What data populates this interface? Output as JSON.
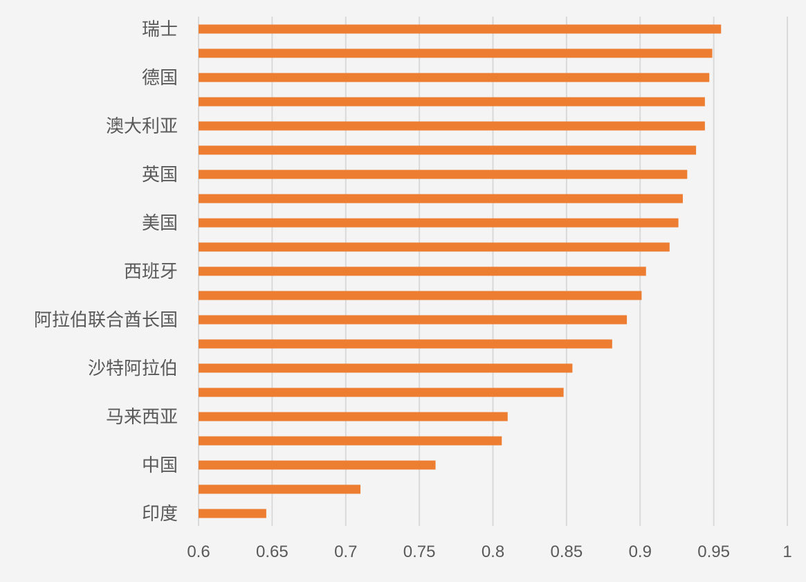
{
  "chart_data": {
    "type": "bar",
    "orientation": "horizontal",
    "categories": [
      "瑞士",
      "",
      "德国",
      "",
      "澳大利亚",
      "",
      "英国",
      "",
      "美国",
      "",
      "西班牙",
      "",
      "阿拉伯联合酋长国",
      "",
      "沙特阿拉伯",
      "",
      "马来西亚",
      "",
      "中国",
      "",
      "印度"
    ],
    "values": [
      0.955,
      0.949,
      0.947,
      0.944,
      0.944,
      0.938,
      0.932,
      0.929,
      0.926,
      0.92,
      0.904,
      0.901,
      0.891,
      0.881,
      0.854,
      0.848,
      0.81,
      0.806,
      0.761,
      0.71,
      0.646
    ],
    "xlim": [
      0.6,
      1
    ],
    "x_ticks": [
      "0.6",
      "0.65",
      "0.7",
      "0.75",
      "0.8",
      "0.85",
      "0.9",
      "0.95",
      "1"
    ],
    "grid": "vertical",
    "legend": "none",
    "bar_color": "#ed7d31"
  }
}
